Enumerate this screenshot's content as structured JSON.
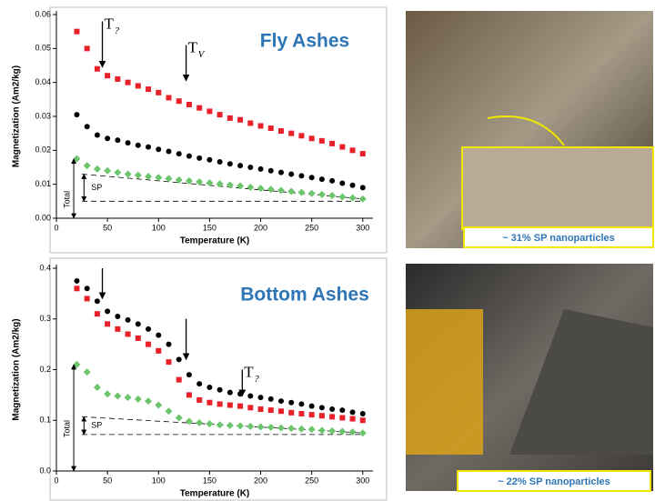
{
  "chart_data": [
    {
      "type": "scatter",
      "title": "Fly Ashes",
      "xlabel": "Temperature (K)",
      "ylabel": "Magnetization (Am2/kg)",
      "xlim": [
        0,
        310
      ],
      "ylim": [
        0,
        0.06
      ],
      "xticks": [
        0,
        50,
        100,
        150,
        200,
        250,
        300
      ],
      "yticks": [
        {
          "value": 0,
          "label": "0.00"
        },
        0.01,
        0.02,
        0.03,
        0.04,
        0.05,
        0.06
      ],
      "x": [
        20,
        30,
        40,
        50,
        60,
        70,
        80,
        90,
        100,
        110,
        120,
        130,
        140,
        150,
        160,
        170,
        180,
        190,
        200,
        210,
        220,
        230,
        240,
        250,
        260,
        270,
        280,
        290,
        300
      ],
      "series": [
        {
          "color": "#e8202a",
          "marker": "square",
          "values": [
            0.055,
            0.05,
            0.044,
            0.042,
            0.041,
            0.04,
            0.039,
            0.038,
            0.037,
            0.0355,
            0.0345,
            0.0335,
            0.0325,
            0.0315,
            0.0305,
            0.0295,
            0.029,
            0.028,
            0.0272,
            0.0265,
            0.0257,
            0.025,
            0.0243,
            0.0235,
            0.0228,
            0.022,
            0.021,
            0.02,
            0.019
          ]
        },
        {
          "color": "#000000",
          "marker": "circle",
          "values": [
            0.0305,
            0.027,
            0.0245,
            0.0235,
            0.023,
            0.0222,
            0.0215,
            0.021,
            0.0203,
            0.0197,
            0.019,
            0.0183,
            0.0177,
            0.0172,
            0.0166,
            0.016,
            0.0155,
            0.015,
            0.0145,
            0.014,
            0.0135,
            0.013,
            0.0125,
            0.012,
            0.0115,
            0.011,
            0.0103,
            0.0097,
            0.009
          ]
        },
        {
          "color": "#6cc56c",
          "marker": "diamond",
          "values": [
            0.0175,
            0.0155,
            0.0145,
            0.014,
            0.0135,
            0.013,
            0.0127,
            0.0123,
            0.012,
            0.0117,
            0.0113,
            0.011,
            0.0107,
            0.0104,
            0.0101,
            0.0098,
            0.0095,
            0.0091,
            0.0088,
            0.0085,
            0.0082,
            0.0079,
            0.0076,
            0.0073,
            0.007,
            0.0067,
            0.0063,
            0.006,
            0.0057
          ]
        }
      ],
      "arrows": [
        {
          "x": 45,
          "y": [
            0.058,
            0.0445
          ],
          "label": "T",
          "subscript": "?"
        },
        {
          "x": 127,
          "y": [
            0.051,
            0.0405
          ],
          "label": "T",
          "subscript": "V"
        }
      ],
      "guides": [
        {
          "x": [
            25,
            300
          ],
          "y": [
            0.013,
            0.0057
          ]
        },
        {
          "x": [
            25,
            300
          ],
          "y": [
            0.005,
            0.005
          ]
        }
      ],
      "brackets": [
        {
          "text": "Total",
          "x": 17,
          "y": [
            0,
            0.0175
          ]
        },
        {
          "text": "SP",
          "x": 27,
          "y": [
            0.005,
            0.013
          ]
        }
      ]
    },
    {
      "type": "scatter",
      "title": "Bottom Ashes",
      "xlabel": "Temperature (K)",
      "ylabel": "Magnetization (Am2/kg)",
      "xlim": [
        0,
        310
      ],
      "ylim": [
        0,
        0.4
      ],
      "xticks": [
        0,
        50,
        100,
        150,
        200,
        250,
        300
      ],
      "yticks": [
        {
          "value": 0,
          "label": "0.0"
        },
        0.1,
        0.2,
        0.3,
        0.4
      ],
      "x": [
        20,
        30,
        40,
        50,
        60,
        70,
        80,
        90,
        100,
        110,
        120,
        130,
        140,
        150,
        160,
        170,
        180,
        190,
        200,
        210,
        220,
        230,
        240,
        250,
        260,
        270,
        280,
        290,
        300
      ],
      "series": [
        {
          "color": "#000000",
          "marker": "circle",
          "values": [
            0.375,
            0.36,
            0.335,
            0.315,
            0.305,
            0.298,
            0.29,
            0.28,
            0.268,
            0.25,
            0.22,
            0.19,
            0.172,
            0.165,
            0.16,
            0.155,
            0.152,
            0.148,
            0.145,
            0.142,
            0.138,
            0.135,
            0.132,
            0.128,
            0.125,
            0.122,
            0.12,
            0.116,
            0.113
          ]
        },
        {
          "color": "#e8202a",
          "marker": "square",
          "values": [
            0.36,
            0.34,
            0.31,
            0.29,
            0.28,
            0.27,
            0.262,
            0.25,
            0.237,
            0.215,
            0.18,
            0.15,
            0.14,
            0.135,
            0.132,
            0.13,
            0.128,
            0.125,
            0.122,
            0.12,
            0.118,
            0.115,
            0.113,
            0.111,
            0.109,
            0.107,
            0.105,
            0.103,
            0.1
          ]
        },
        {
          "color": "#6cc56c",
          "marker": "diamond",
          "values": [
            0.21,
            0.195,
            0.165,
            0.152,
            0.148,
            0.145,
            0.142,
            0.138,
            0.13,
            0.118,
            0.105,
            0.098,
            0.095,
            0.093,
            0.091,
            0.09,
            0.089,
            0.088,
            0.087,
            0.086,
            0.085,
            0.084,
            0.083,
            0.082,
            0.08,
            0.079,
            0.078,
            0.077,
            0.075
          ]
        }
      ],
      "arrows": [
        {
          "x": 45,
          "y": [
            0.4,
            0.34
          ]
        },
        {
          "x": 127,
          "y": [
            0.3,
            0.22
          ]
        },
        {
          "x": 182,
          "y": [
            0.2,
            0.148
          ],
          "label": "T",
          "subscript": "?"
        }
      ],
      "guides": [
        {
          "x": [
            25,
            300
          ],
          "y": [
            0.107,
            0.075
          ]
        },
        {
          "x": [
            25,
            300
          ],
          "y": [
            0.072,
            0.072
          ]
        }
      ],
      "brackets": [
        {
          "text": "Total",
          "x": 17,
          "y": [
            0,
            0.21
          ]
        },
        {
          "text": "SP",
          "x": 27,
          "y": [
            0.072,
            0.107
          ]
        }
      ]
    }
  ],
  "photos": [
    {
      "caption": "~ 31% SP nanoparticles"
    },
    {
      "caption": "~ 22% SP nanoparticles"
    }
  ]
}
